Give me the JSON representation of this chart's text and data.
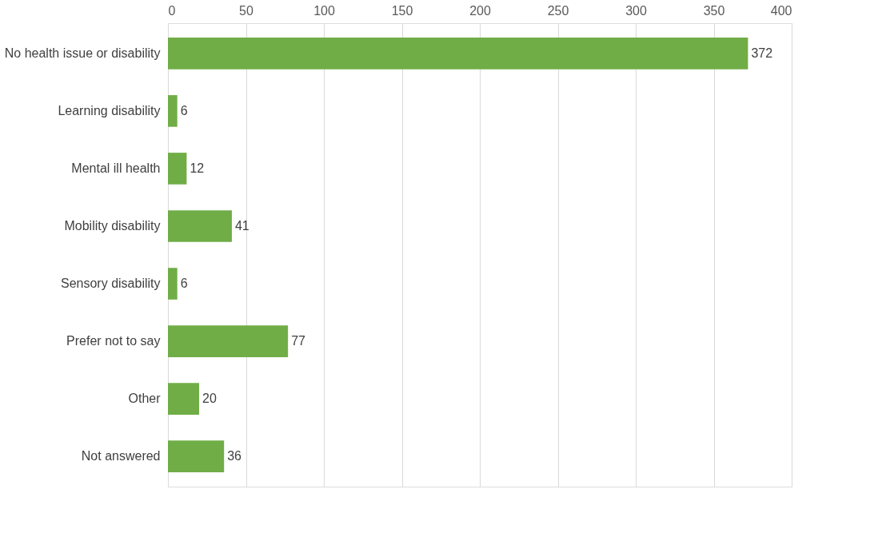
{
  "chart_data": {
    "type": "bar",
    "orientation": "horizontal",
    "categories": [
      "No health issue or disability",
      "Learning disability",
      "Mental ill health",
      "Mobility disability",
      "Sensory disability",
      "Prefer not to say",
      "Other",
      "Not answered"
    ],
    "values": [
      372,
      6,
      12,
      41,
      6,
      77,
      20,
      36
    ],
    "color": "#70ad47",
    "xlim": [
      0,
      400
    ],
    "xticks": [
      0,
      50,
      100,
      150,
      200,
      250,
      300,
      350,
      400
    ],
    "grid": "x",
    "data_labels": true
  }
}
